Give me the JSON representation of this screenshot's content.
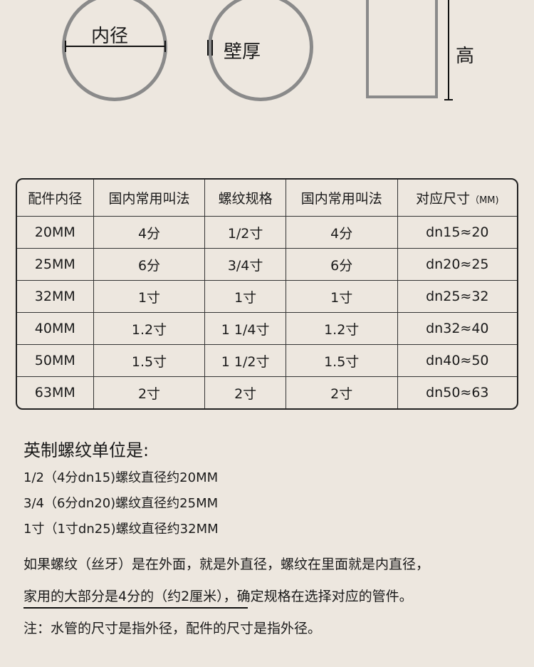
{
  "diagram": {
    "inner_diameter": "内径",
    "wall_thickness": "壁厚",
    "height": "高"
  },
  "table": {
    "headers": [
      "配件内径",
      "国内常用叫法",
      "螺纹规格",
      "国内常用叫法",
      "对应尺寸",
      "（MM)"
    ],
    "rows": [
      [
        "20MM",
        "4分",
        "1/2寸",
        "4分",
        "dn15≈20"
      ],
      [
        "25MM",
        "6分",
        "3/4寸",
        "6分",
        "dn20≈25"
      ],
      [
        "32MM",
        "1寸",
        "1寸",
        "1寸",
        "dn25≈32"
      ],
      [
        "40MM",
        "1.2寸",
        "1 1/4寸",
        "1.2寸",
        "dn32≈40"
      ],
      [
        "50MM",
        "1.5寸",
        "1 1/2寸",
        "1.5寸",
        "dn40≈50"
      ],
      [
        "63MM",
        "2寸",
        "2寸",
        "2寸",
        "dn50≈63"
      ]
    ]
  },
  "notes": {
    "title": "英制螺纹单位是:",
    "lines": [
      "1/2（4分dn15)螺纹直径约20MM",
      "3/4（6分dn20)螺纹直径约25MM",
      "1寸（1寸dn25)螺纹直径约32MM"
    ],
    "para1": "如果螺纹（丝牙）是在外面，就是外直径，螺纹在里面就是内直径，",
    "para2": "家用的大部分是4分的（约2厘米），确定规格在选择对应的管件。",
    "para3": "注：水管的尺寸是指外径，配件的尺寸是指外径。"
  }
}
